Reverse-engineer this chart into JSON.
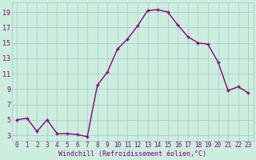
{
  "x": [
    0,
    1,
    2,
    3,
    4,
    5,
    6,
    7,
    8,
    9,
    10,
    11,
    12,
    13,
    14,
    15,
    16,
    17,
    18,
    19,
    20,
    21,
    22,
    23
  ],
  "y": [
    5.0,
    5.2,
    3.5,
    5.0,
    3.2,
    3.2,
    3.1,
    2.8,
    9.5,
    11.2,
    14.2,
    15.5,
    17.2,
    19.2,
    19.3,
    19.0,
    17.3,
    15.8,
    15.0,
    14.8,
    12.5,
    8.8,
    9.3,
    8.5
  ],
  "line_color": "#880088",
  "bg_color": "#cceedd",
  "grid_color": "#aacccc",
  "xlabel": "Windchill (Refroidissement éolien,°C)",
  "xlabel_color": "#880088",
  "yticks": [
    3,
    5,
    7,
    9,
    11,
    13,
    15,
    17,
    19
  ],
  "xticks": [
    0,
    1,
    2,
    3,
    4,
    5,
    6,
    7,
    8,
    9,
    10,
    11,
    12,
    13,
    14,
    15,
    16,
    17,
    18,
    19,
    20,
    21,
    22,
    23
  ],
  "ylim": [
    2.3,
    20.2
  ],
  "xlim": [
    -0.5,
    23.5
  ],
  "markersize": 2.5,
  "linewidth": 1.0,
  "tick_fontsize": 5.5,
  "xlabel_fontsize": 6.0,
  "ytick_fontsize": 6.0
}
